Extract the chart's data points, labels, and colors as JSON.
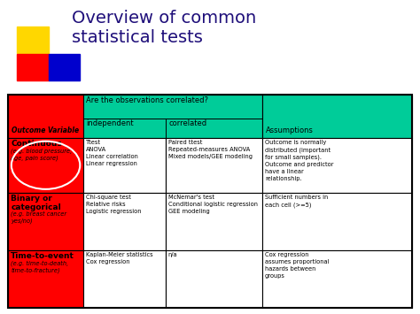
{
  "title_line1": "Overview of common",
  "title_line2": "statistical tests",
  "title_color": "#1F0F7A",
  "bg_color": "#ffffff",
  "header_question": "Are the observations correlated?",
  "cell_data": [
    [
      "Ttest\nANOVA\nLinear correlation\nLinear regression",
      "Paired ttest\nRepeated-measures ANOVA\nMixed models/GEE modeling",
      "Outcome is normally\ndistributed (important\nfor small samples).\nOutcome and predictor\nhave a linear\nrelationship."
    ],
    [
      "Chi-square test\nRelative risks\nLogistic regression",
      "McNemar's test\nConditional logistic regression\nGEE modeling",
      "Sufficient numbers in\neach cell (>=5)"
    ],
    [
      "Kaplan-Meier statistics\nCox regression",
      "n/a",
      "Cox regression\nassumes proportional\nhazards between\ngroups"
    ]
  ],
  "red_color": "#FF0000",
  "teal_color": "#00CC99",
  "white_color": "#FFFFFF"
}
